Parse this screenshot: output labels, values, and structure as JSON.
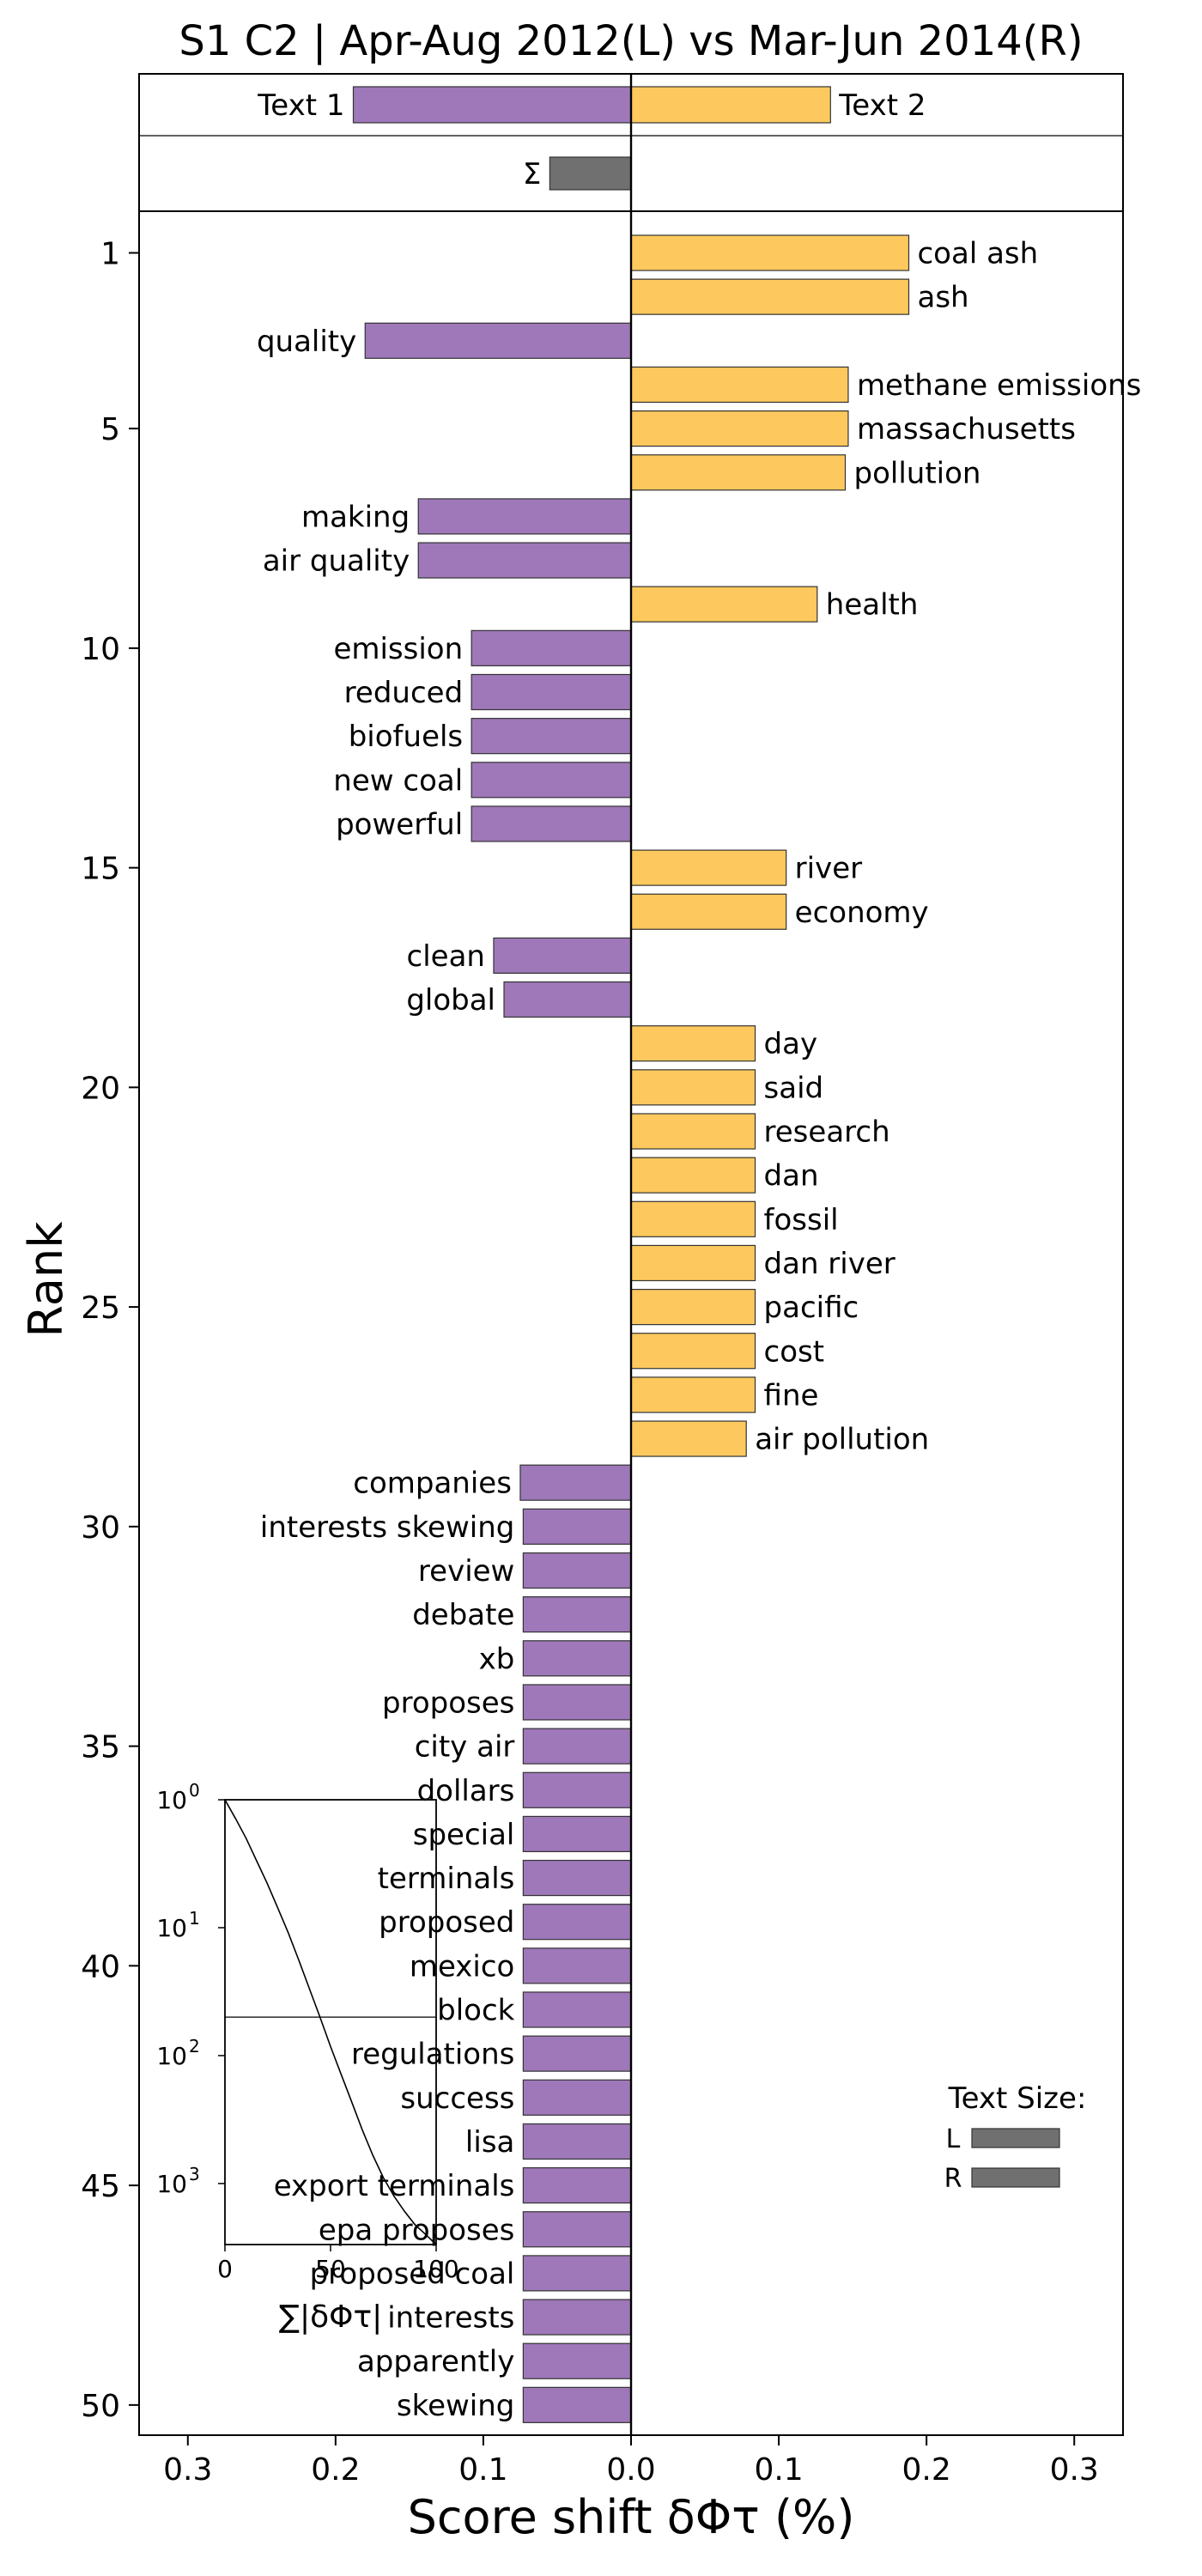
{
  "chart_data": {
    "type": "bar",
    "orientation": "horizontal",
    "title": "S1 C2 | Apr-Aug 2012(L) vs Mar-Jun 2014(R)",
    "xlabel": "Score shift δΦτ (%)",
    "ylabel": "Rank",
    "xlim": [
      -0.333,
      0.333
    ],
    "x_tick_values": [
      -0.3,
      -0.2,
      -0.1,
      0,
      0.1,
      0.2,
      0.3
    ],
    "x_tick_labels": [
      "0.3",
      "0.2",
      "0.1",
      "0.0",
      "0.1",
      "0.2",
      "0.3"
    ],
    "y_ticks": [
      1,
      5,
      10,
      15,
      20,
      25,
      30,
      35,
      40,
      45,
      50
    ],
    "colors": {
      "left": "#9e78b9",
      "right": "#fdc95e",
      "total": "#707070",
      "size": "#707070"
    },
    "header": {
      "text1_label": "Text 1",
      "text2_label": "Text 2",
      "text1_value": -0.188,
      "text2_value": 0.135,
      "sigma_label": "Σ",
      "sigma_value": -0.055
    },
    "series": [
      {
        "rank": 1,
        "word": "coal ash",
        "value": 0.188
      },
      {
        "rank": 2,
        "word": "ash",
        "value": 0.188
      },
      {
        "rank": 3,
        "word": "quality",
        "value": -0.18
      },
      {
        "rank": 4,
        "word": "methane emissions",
        "value": 0.147
      },
      {
        "rank": 5,
        "word": "massachusetts",
        "value": 0.147
      },
      {
        "rank": 6,
        "word": "pollution",
        "value": 0.145
      },
      {
        "rank": 7,
        "word": "making",
        "value": -0.144
      },
      {
        "rank": 8,
        "word": "air quality",
        "value": -0.144
      },
      {
        "rank": 9,
        "word": "health",
        "value": 0.126
      },
      {
        "rank": 10,
        "word": "emission",
        "value": -0.108
      },
      {
        "rank": 11,
        "word": "reduced",
        "value": -0.108
      },
      {
        "rank": 12,
        "word": "biofuels",
        "value": -0.108
      },
      {
        "rank": 13,
        "word": "new coal",
        "value": -0.108
      },
      {
        "rank": 14,
        "word": "powerful",
        "value": -0.108
      },
      {
        "rank": 15,
        "word": "river",
        "value": 0.105
      },
      {
        "rank": 16,
        "word": "economy",
        "value": 0.105
      },
      {
        "rank": 17,
        "word": "clean",
        "value": -0.093
      },
      {
        "rank": 18,
        "word": "global",
        "value": -0.086
      },
      {
        "rank": 19,
        "word": "day",
        "value": 0.084
      },
      {
        "rank": 20,
        "word": "said",
        "value": 0.084
      },
      {
        "rank": 21,
        "word": "research",
        "value": 0.084
      },
      {
        "rank": 22,
        "word": "dan",
        "value": 0.084
      },
      {
        "rank": 23,
        "word": "fossil",
        "value": 0.084
      },
      {
        "rank": 24,
        "word": "dan river",
        "value": 0.084
      },
      {
        "rank": 25,
        "word": "pacific",
        "value": 0.084
      },
      {
        "rank": 26,
        "word": "cost",
        "value": 0.084
      },
      {
        "rank": 27,
        "word": "fine",
        "value": 0.084
      },
      {
        "rank": 28,
        "word": "air pollution",
        "value": 0.078
      },
      {
        "rank": 29,
        "word": "companies",
        "value": -0.075
      },
      {
        "rank": 30,
        "word": "interests skewing",
        "value": -0.073
      },
      {
        "rank": 31,
        "word": "review",
        "value": -0.073
      },
      {
        "rank": 32,
        "word": "debate",
        "value": -0.073
      },
      {
        "rank": 33,
        "word": "xb",
        "value": -0.073
      },
      {
        "rank": 34,
        "word": "proposes",
        "value": -0.073
      },
      {
        "rank": 35,
        "word": "city air",
        "value": -0.073
      },
      {
        "rank": 36,
        "word": "dollars",
        "value": -0.073
      },
      {
        "rank": 37,
        "word": "special",
        "value": -0.073
      },
      {
        "rank": 38,
        "word": "terminals",
        "value": -0.073
      },
      {
        "rank": 39,
        "word": "proposed",
        "value": -0.073
      },
      {
        "rank": 40,
        "word": "mexico",
        "value": -0.073
      },
      {
        "rank": 41,
        "word": "block",
        "value": -0.073
      },
      {
        "rank": 42,
        "word": "regulations",
        "value": -0.073
      },
      {
        "rank": 43,
        "word": "success",
        "value": -0.073
      },
      {
        "rank": 44,
        "word": "lisa",
        "value": -0.073
      },
      {
        "rank": 45,
        "word": "export terminals",
        "value": -0.073
      },
      {
        "rank": 46,
        "word": "epa proposes",
        "value": -0.073
      },
      {
        "rank": 47,
        "word": "proposed coal",
        "value": -0.073
      },
      {
        "rank": 48,
        "word": "interests",
        "value": -0.073
      },
      {
        "rank": 49,
        "word": "apparently",
        "value": -0.073
      },
      {
        "rank": 50,
        "word": "skewing",
        "value": -0.073
      }
    ],
    "legend": {
      "title": "Text Size:",
      "placement": "lower-right",
      "items": [
        {
          "label": "L",
          "value": 1.0
        },
        {
          "label": "R",
          "value": 1.0
        }
      ]
    },
    "inset": {
      "xlabel": "∑|δΦτ|",
      "xlim": [
        0,
        100
      ],
      "x_tick_labels": [
        "0",
        "50",
        "100"
      ],
      "y_scale": "log",
      "y_tick_labels": [
        {
          "base": "10",
          "exp": "0"
        },
        {
          "base": "10",
          "exp": "1"
        },
        {
          "base": "10",
          "exp": "2"
        },
        {
          "base": "10",
          "exp": "3"
        }
      ],
      "y_range": [
        1,
        3000
      ],
      "threshold_rank": 50,
      "cumulative_curve": [
        [
          0,
          1
        ],
        [
          5,
          1.4
        ],
        [
          10,
          2
        ],
        [
          15,
          3
        ],
        [
          20,
          4.5
        ],
        [
          25,
          7
        ],
        [
          30,
          11
        ],
        [
          35,
          18
        ],
        [
          40,
          30
        ],
        [
          45,
          50
        ],
        [
          50,
          85
        ],
        [
          55,
          140
        ],
        [
          60,
          230
        ],
        [
          65,
          380
        ],
        [
          70,
          600
        ],
        [
          75,
          900
        ],
        [
          80,
          1250
        ],
        [
          85,
          1650
        ],
        [
          90,
          2100
        ],
        [
          95,
          2500
        ],
        [
          100,
          3000
        ]
      ]
    }
  }
}
